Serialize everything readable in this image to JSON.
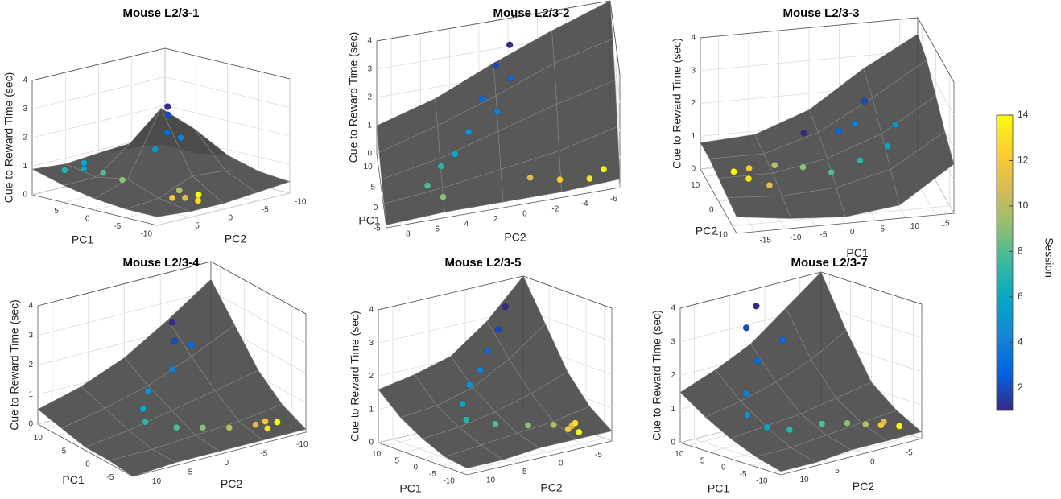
{
  "chart_data": [
    {
      "type": "scatter3d",
      "title": "Mouse L2/3-1",
      "xlabel": "PC1",
      "ylabel": "PC2",
      "zlabel": "Cue to Reward Time (sec)",
      "xlim": [
        -10,
        10
      ],
      "xticks": [
        -10,
        -5,
        0,
        5
      ],
      "ylim": [
        -10,
        10
      ],
      "yticks": [
        -10,
        -5,
        0,
        5
      ],
      "zlim": [
        0,
        4
      ],
      "zticks": [
        0,
        1,
        2,
        3,
        4
      ],
      "grid": true,
      "surface": {
        "x": [
          -10,
          -5,
          0,
          5,
          10
        ],
        "y": [
          -10,
          -5,
          0,
          5,
          10
        ],
        "z": [
          [
            0.4,
            0.5,
            0.8,
            0.6,
            0.7
          ],
          [
            0.3,
            0.8,
            2.0,
            1.2,
            0.8
          ],
          [
            0.2,
            0.9,
            3.0,
            1.5,
            0.9
          ],
          [
            0.2,
            0.4,
            0.8,
            0.6,
            0.8
          ],
          [
            0.3,
            0.3,
            0.4,
            0.6,
            0.9
          ]
        ]
      },
      "points": {
        "x": [
          0,
          1,
          -1,
          0,
          2,
          6,
          7,
          8,
          5,
          3,
          -4,
          -6,
          -5,
          -7,
          -6
        ],
        "y": [
          -1,
          -2,
          0,
          -3,
          -1,
          6,
          5,
          7,
          4,
          3,
          1,
          2,
          3,
          1,
          0
        ],
        "z": [
          3.0,
          2.6,
          2.2,
          1.8,
          1.4,
          0.9,
          1.0,
          0.8,
          0.7,
          0.5,
          0.4,
          0.3,
          0.3,
          0.2,
          0.3
        ],
        "session": [
          1,
          2,
          3,
          4,
          5,
          6,
          6,
          7,
          8,
          9,
          10,
          11,
          12,
          13,
          14
        ]
      }
    },
    {
      "type": "scatter3d",
      "title": "Mouse L2/3-2",
      "xlabel": "PC1",
      "ylabel": "PC2",
      "zlabel": "Cue to Reward Time (sec)",
      "xlim": [
        -7,
        11
      ],
      "xticks": [
        -5,
        0,
        5,
        10
      ],
      "ylim": [
        -7,
        9
      ],
      "yticks": [
        -6,
        -4,
        -2,
        0,
        2,
        4,
        6,
        8
      ],
      "zlim": [
        0,
        4
      ],
      "zticks": [
        0,
        1,
        2,
        3,
        4
      ],
      "grid": true,
      "surface": {
        "x": [
          -7,
          -2.5,
          2,
          6.5,
          11
        ],
        "y": [
          -7,
          -3,
          1,
          5,
          9
        ],
        "z": [
          [
            0.3,
            1.5,
            2.5,
            3.3,
            4.0
          ],
          [
            0.2,
            1.0,
            2.0,
            2.8,
            3.3
          ],
          [
            0.2,
            0.7,
            1.4,
            2.0,
            2.5
          ],
          [
            0.2,
            0.4,
            0.8,
            1.3,
            1.6
          ],
          [
            0.1,
            0.2,
            0.4,
            0.7,
            1.0
          ]
        ]
      },
      "points": {
        "x": [
          8,
          7,
          6,
          5,
          4,
          3,
          1,
          0,
          -2,
          -4,
          -3,
          -4,
          -5,
          -4
        ],
        "y": [
          0,
          1,
          0,
          2,
          1,
          3,
          4,
          5,
          6,
          5,
          -1,
          -3,
          -5,
          -6
        ],
        "z": [
          3.5,
          3.0,
          2.6,
          2.2,
          1.8,
          1.4,
          1.0,
          0.8,
          0.5,
          0.3,
          0.3,
          0.2,
          0.2,
          0.3
        ],
        "session": [
          1,
          2,
          3,
          3,
          4,
          5,
          6,
          7,
          8,
          9,
          11,
          12,
          13,
          14
        ]
      }
    },
    {
      "type": "scatter3d",
      "title": "Mouse L2/3-3",
      "xlabel": "PC1",
      "ylabel": "PC2",
      "zlabel": "Cue to Reward Time (sec)",
      "xlim": [
        -18,
        18
      ],
      "xticks": [
        -15,
        -10,
        -5,
        0,
        5,
        10,
        15
      ],
      "ylim": [
        -13,
        13
      ],
      "yticks": [
        -10,
        0,
        10
      ],
      "zlim": [
        0,
        4
      ],
      "zticks": [
        0,
        1,
        2,
        3,
        4
      ],
      "grid": true,
      "surface": {
        "x": [
          -18,
          -9,
          0,
          9,
          18
        ],
        "y": [
          -13,
          -6.5,
          0,
          6.5,
          13
        ],
        "z": [
          [
            0.5,
            0.3,
            0.2,
            0.4,
            1.5
          ],
          [
            0.6,
            0.5,
            0.6,
            1.0,
            2.0
          ],
          [
            0.7,
            0.7,
            1.0,
            1.6,
            2.6
          ],
          [
            0.8,
            0.8,
            1.3,
            2.2,
            3.2
          ],
          [
            0.8,
            0.9,
            1.5,
            2.6,
            3.5
          ]
        ]
      },
      "points": {
        "x": [
          -15,
          -13,
          -12,
          -10,
          -8,
          -4,
          0,
          5,
          10,
          12,
          6,
          3,
          8,
          -2
        ],
        "y": [
          2,
          0,
          4,
          -2,
          3,
          0,
          -3,
          -2,
          0,
          3,
          6,
          5,
          8,
          8
        ],
        "z": [
          0.7,
          0.6,
          0.6,
          0.5,
          0.7,
          0.8,
          0.8,
          1.0,
          1.2,
          1.6,
          1.5,
          1.4,
          2.0,
          1.2
        ],
        "session": [
          14,
          13,
          12,
          11,
          10,
          9,
          8,
          7,
          6,
          5,
          4,
          3,
          2,
          1
        ]
      }
    },
    {
      "type": "scatter3d",
      "title": "Mouse L2/3-4",
      "xlabel": "PC1",
      "ylabel": "PC2",
      "zlabel": "Cue to Reward Time (sec)",
      "xlim": [
        -8,
        12
      ],
      "xticks": [
        -5,
        0,
        5,
        10
      ],
      "ylim": [
        -12,
        12
      ],
      "yticks": [
        -10,
        -5,
        0,
        5,
        10
      ],
      "zlim": [
        0,
        4
      ],
      "zticks": [
        0,
        1,
        2,
        3,
        4
      ],
      "grid": true,
      "surface": {
        "x": [
          -8,
          -3,
          2,
          7,
          12
        ],
        "y": [
          -12,
          -6,
          0,
          6,
          12
        ],
        "z": [
          [
            0.1,
            0.5,
            1.2,
            2.3,
            3.4
          ],
          [
            0.1,
            0.3,
            0.9,
            1.6,
            2.4
          ],
          [
            0.1,
            0.2,
            0.6,
            1.0,
            1.5
          ],
          [
            0.1,
            0.1,
            0.3,
            0.6,
            0.9
          ],
          [
            0.0,
            0.1,
            0.1,
            0.3,
            0.5
          ]
        ]
      },
      "points": {
        "x": [
          8,
          6,
          7,
          5,
          4,
          2,
          0,
          -2,
          -3,
          -4,
          -5,
          -4,
          -6,
          -5
        ],
        "y": [
          -4,
          -3,
          -6,
          -2,
          2,
          4,
          5,
          2,
          -1,
          -4,
          -7,
          -9,
          -8,
          -10
        ],
        "z": [
          2.8,
          2.4,
          2.0,
          1.6,
          1.2,
          0.9,
          0.7,
          0.5,
          0.4,
          0.3,
          0.3,
          0.2,
          0.2,
          0.2
        ],
        "session": [
          1,
          2,
          3,
          4,
          5,
          6,
          7,
          8,
          9,
          10,
          11,
          12,
          13,
          14
        ]
      }
    },
    {
      "type": "scatter3d",
      "title": "Mouse L2/3-5",
      "xlabel": "PC1",
      "ylabel": "PC2",
      "zlabel": "Cue to Reward Time (sec)",
      "xlim": [
        -12,
        12
      ],
      "xticks": [
        -10,
        -5,
        0,
        5,
        10
      ],
      "ylim": [
        -8,
        12
      ],
      "yticks": [
        -5,
        0,
        5,
        10
      ],
      "zlim": [
        0,
        4
      ],
      "zticks": [
        0,
        1,
        2,
        3,
        4
      ],
      "grid": true,
      "surface": {
        "x": [
          -12,
          -6,
          0,
          6,
          12
        ],
        "y": [
          -8,
          -3,
          2,
          7,
          12
        ],
        "z": [
          [
            0.3,
            0.8,
            1.6,
            2.8,
            4.0
          ],
          [
            0.3,
            0.6,
            1.2,
            2.0,
            2.9
          ],
          [
            0.3,
            0.5,
            0.9,
            1.4,
            2.1
          ],
          [
            0.2,
            0.4,
            0.7,
            1.1,
            1.8
          ],
          [
            0.2,
            0.3,
            0.6,
            1.0,
            1.6
          ]
        ]
      },
      "points": {
        "x": [
          9,
          7,
          6,
          4,
          3,
          1,
          -2,
          -4,
          -5,
          -6,
          -7,
          -8,
          -6,
          -9
        ],
        "y": [
          -4,
          -2,
          0,
          2,
          4,
          6,
          7,
          4,
          0,
          -3,
          -5,
          -4,
          -6,
          -5
        ],
        "z": [
          3.4,
          2.9,
          2.4,
          2.0,
          1.7,
          1.3,
          1.0,
          0.8,
          0.6,
          0.5,
          0.4,
          0.4,
          0.4,
          0.3
        ],
        "session": [
          1,
          2,
          3,
          4,
          5,
          6,
          7,
          8,
          9,
          10,
          11,
          12,
          13,
          14
        ]
      }
    },
    {
      "type": "scatter3d",
      "title": "Mouse L2/3-7",
      "xlabel": "PC1",
      "ylabel": "PC2",
      "zlabel": "Cue to Reward Time (sec)",
      "xlim": [
        -12,
        12
      ],
      "xticks": [
        -10,
        -5,
        0,
        5,
        10
      ],
      "ylim": [
        -8,
        12
      ],
      "yticks": [
        -5,
        0,
        5,
        10
      ],
      "zlim": [
        0,
        4
      ],
      "zticks": [
        0,
        1,
        2,
        3,
        4
      ],
      "grid": true,
      "surface": {
        "x": [
          -12,
          -6,
          0,
          6,
          12
        ],
        "y": [
          -8,
          -3,
          2,
          7,
          12
        ],
        "z": [
          [
            0.2,
            0.6,
            1.2,
            2.5,
            4.0
          ],
          [
            0.2,
            0.5,
            1.0,
            1.9,
            3.2
          ],
          [
            0.2,
            0.4,
            0.8,
            1.5,
            2.4
          ],
          [
            0.1,
            0.3,
            0.7,
            1.2,
            1.9
          ],
          [
            0.1,
            0.3,
            0.6,
            1.0,
            1.5
          ]
        ]
      },
      "points": {
        "x": [
          9,
          8,
          6,
          7,
          3,
          1,
          -2,
          -4,
          -5,
          -6,
          -7,
          -8,
          -9,
          -10
        ],
        "y": [
          3,
          5,
          1,
          4,
          8,
          9,
          8,
          6,
          2,
          -1,
          -3,
          -5,
          -4,
          -6
        ],
        "z": [
          3.7,
          3.2,
          2.7,
          2.2,
          1.6,
          1.1,
          0.8,
          0.7,
          0.7,
          0.6,
          0.5,
          0.5,
          0.5,
          0.4
        ],
        "session": [
          1,
          2,
          3,
          3,
          4,
          5,
          6,
          7,
          8,
          9,
          10,
          11,
          12,
          14
        ]
      }
    }
  ],
  "colorbar": {
    "label": "Session",
    "clim": [
      1,
      14
    ],
    "ticks": [
      2,
      4,
      6,
      8,
      10,
      12,
      14
    ],
    "colormap": [
      "#352a87",
      "#0363e1",
      "#1485d4",
      "#06a7c6",
      "#38b99e",
      "#92bf73",
      "#d9ba56",
      "#fcce2e",
      "#f9fb0e"
    ]
  }
}
